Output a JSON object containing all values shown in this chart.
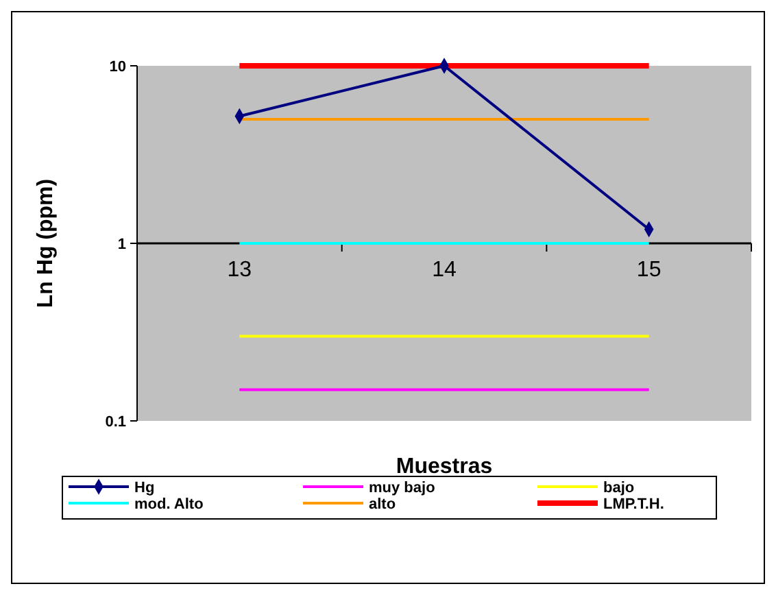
{
  "chart_data": {
    "type": "line",
    "xlabel": "Muestras",
    "ylabel": "Ln Hg (ppm)",
    "categories": [
      "13",
      "14",
      "15"
    ],
    "log": true,
    "ylim": [
      0.1,
      10
    ],
    "yticks": [
      0.1,
      1,
      10
    ],
    "grid": false,
    "legend": "bottom",
    "series": [
      {
        "name": "Hg",
        "color": "#000080",
        "values": [
          5.2,
          10,
          1.2
        ],
        "marker": "diamond"
      },
      {
        "name": "muy bajo",
        "color": "#ff00ff",
        "values": [
          0.15,
          0.15,
          0.15
        ],
        "marker": "none"
      },
      {
        "name": "bajo",
        "color": "#ffff00",
        "values": [
          0.3,
          0.3,
          0.3
        ],
        "marker": "none"
      },
      {
        "name": "mod. Alto",
        "color": "#00ffff",
        "values": [
          1,
          1,
          1
        ],
        "marker": "none"
      },
      {
        "name": "alto",
        "color": "#ff9900",
        "values": [
          5,
          5,
          5
        ],
        "marker": "none"
      },
      {
        "name": "LMP.T.H.",
        "color": "#ff0000",
        "values": [
          10,
          10,
          10
        ],
        "marker": "none"
      }
    ]
  }
}
